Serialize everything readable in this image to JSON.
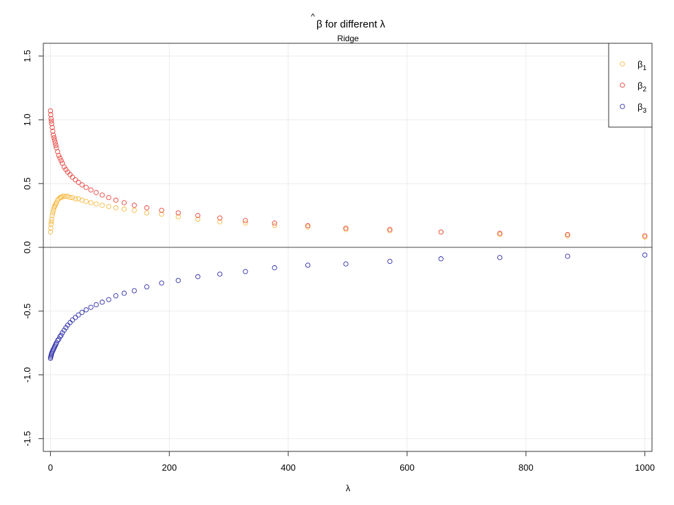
{
  "chart_data": {
    "type": "scatter",
    "title_symbol": "β",
    "title_rest": " for different λ",
    "subtitle": "Ridge",
    "xlabel": "λ",
    "ylabel": "",
    "xlim": [
      -12,
      1012
    ],
    "ylim": [
      -1.6,
      1.6
    ],
    "x_ticks": [
      0,
      200,
      400,
      600,
      800,
      1000
    ],
    "x_tick_labels": [
      "0",
      "200",
      "400",
      "600",
      "800",
      "1000"
    ],
    "y_ticks": [
      -1.5,
      -1.0,
      -0.5,
      0.0,
      0.5,
      1.0,
      1.5
    ],
    "y_tick_labels": [
      "-1.5",
      "-1.0",
      "-0.5",
      "0.0",
      "0.5",
      "1.0",
      "1.5"
    ],
    "grid": true,
    "reference_line_y": 0,
    "legend_position": "top-right",
    "x": [
      0,
      0.5,
      1,
      1.5,
      2,
      3,
      4,
      5,
      6,
      7,
      8,
      9,
      10,
      12,
      14,
      16,
      18,
      20,
      23,
      26,
      29,
      33,
      37,
      42,
      47,
      53,
      60,
      68,
      77,
      87,
      98,
      110,
      124,
      141,
      162,
      187,
      215,
      248,
      285,
      328,
      377,
      433,
      497,
      571,
      657,
      756,
      870,
      1000
    ],
    "series": [
      {
        "name": "β1",
        "color": "#f5b942",
        "values": [
          0.12,
          0.15,
          0.18,
          0.2,
          0.22,
          0.25,
          0.27,
          0.29,
          0.31,
          0.32,
          0.33,
          0.34,
          0.35,
          0.37,
          0.38,
          0.39,
          0.39,
          0.4,
          0.4,
          0.4,
          0.4,
          0.39,
          0.39,
          0.38,
          0.38,
          0.37,
          0.36,
          0.35,
          0.34,
          0.33,
          0.32,
          0.31,
          0.3,
          0.29,
          0.27,
          0.26,
          0.24,
          0.22,
          0.2,
          0.19,
          0.17,
          0.16,
          0.14,
          0.13,
          0.12,
          0.1,
          0.09,
          0.08
        ]
      },
      {
        "name": "β2",
        "color": "#e8403a",
        "values": [
          1.07,
          1.04,
          1.01,
          0.99,
          0.97,
          0.94,
          0.91,
          0.88,
          0.86,
          0.84,
          0.82,
          0.8,
          0.78,
          0.75,
          0.72,
          0.7,
          0.68,
          0.66,
          0.63,
          0.61,
          0.59,
          0.57,
          0.55,
          0.53,
          0.51,
          0.49,
          0.47,
          0.45,
          0.43,
          0.41,
          0.39,
          0.37,
          0.35,
          0.33,
          0.31,
          0.29,
          0.27,
          0.25,
          0.23,
          0.21,
          0.19,
          0.17,
          0.15,
          0.14,
          0.12,
          0.11,
          0.1,
          0.09
        ]
      },
      {
        "name": "β3",
        "color": "#2b2ba8",
        "values": [
          -0.87,
          -0.86,
          -0.85,
          -0.84,
          -0.83,
          -0.82,
          -0.81,
          -0.8,
          -0.79,
          -0.78,
          -0.77,
          -0.76,
          -0.75,
          -0.73,
          -0.72,
          -0.7,
          -0.69,
          -0.67,
          -0.65,
          -0.63,
          -0.61,
          -0.59,
          -0.57,
          -0.55,
          -0.53,
          -0.51,
          -0.49,
          -0.47,
          -0.45,
          -0.43,
          -0.41,
          -0.38,
          -0.36,
          -0.34,
          -0.31,
          -0.28,
          -0.26,
          -0.23,
          -0.21,
          -0.19,
          -0.16,
          -0.14,
          -0.13,
          -0.11,
          -0.09,
          -0.08,
          -0.07,
          -0.06
        ]
      }
    ]
  }
}
